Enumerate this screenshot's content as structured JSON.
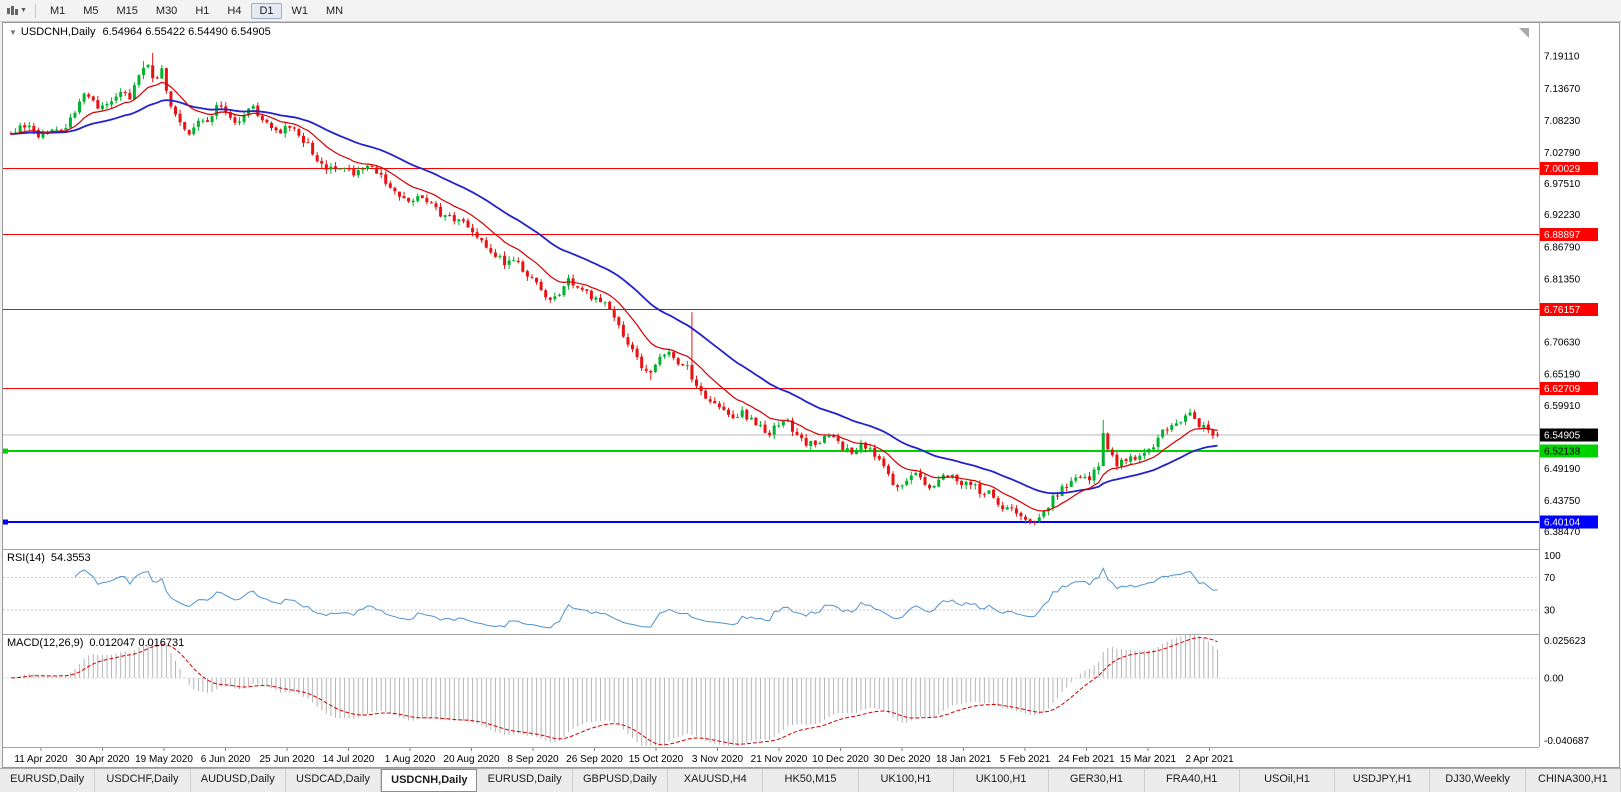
{
  "toolbar": {
    "timeframes": [
      "M1",
      "M5",
      "M15",
      "M30",
      "H1",
      "H4",
      "D1",
      "W1",
      "MN"
    ],
    "active_timeframe": "D1"
  },
  "chart": {
    "legend": {
      "symbol": "USDCNH,Daily",
      "ohlc": "6.54964 6.55422 6.54490 6.54905"
    }
  },
  "chart_data": {
    "type": "candlestick",
    "symbol": "USDCNH",
    "timeframe": "Daily",
    "candle_count": 265,
    "candle_colors": {
      "up": "#00b22d",
      "down": "#e81212"
    },
    "x_labels": [
      "11 Apr 2020",
      "30 Apr 2020",
      "19 May 2020",
      "6 Jun 2020",
      "25 Jun 2020",
      "14 Jul 2020",
      "1 Aug 2020",
      "20 Aug 2020",
      "8 Sep 2020",
      "26 Sep 2020",
      "15 Oct 2020",
      "3 Nov 2020",
      "21 Nov 2020",
      "10 Dec 2020",
      "30 Dec 2020",
      "18 Jan 2021",
      "5 Feb 2021",
      "24 Feb 2021",
      "15 Mar 2021",
      "2 Apr 2021"
    ],
    "y_axis": {
      "min": 6.357,
      "max": 7.2474,
      "tick_labels": [
        "7.19110",
        "7.13670",
        "7.08230",
        "7.02790",
        "6.97510",
        "6.92230",
        "6.86790",
        "6.81350",
        "6.70630",
        "6.65190",
        "6.59910",
        "6.49190",
        "6.43750",
        "6.38470"
      ]
    },
    "close_anchors": [
      [
        0,
        7.062
      ],
      [
        3,
        7.075
      ],
      [
        6,
        7.052
      ],
      [
        9,
        7.068
      ],
      [
        12,
        7.072
      ],
      [
        14,
        7.096
      ],
      [
        16,
        7.128
      ],
      [
        18,
        7.112
      ],
      [
        20,
        7.102
      ],
      [
        22,
        7.118
      ],
      [
        24,
        7.135
      ],
      [
        26,
        7.12
      ],
      [
        28,
        7.158
      ],
      [
        30,
        7.176
      ],
      [
        31,
        7.148
      ],
      [
        33,
        7.168
      ],
      [
        35,
        7.105
      ],
      [
        37,
        7.08
      ],
      [
        39,
        7.062
      ],
      [
        41,
        7.082
      ],
      [
        43,
        7.076
      ],
      [
        45,
        7.112
      ],
      [
        47,
        7.094
      ],
      [
        49,
        7.076
      ],
      [
        51,
        7.092
      ],
      [
        53,
        7.103
      ],
      [
        55,
        7.082
      ],
      [
        57,
        7.072
      ],
      [
        59,
        7.066
      ],
      [
        61,
        7.074
      ],
      [
        63,
        7.058
      ],
      [
        65,
        7.042
      ],
      [
        67,
        7.018
      ],
      [
        69,
        7.002
      ],
      [
        71,
        6.996
      ],
      [
        73,
        7.001
      ],
      [
        75,
        6.99
      ],
      [
        77,
        7.004
      ],
      [
        79,
        7.008
      ],
      [
        81,
        6.988
      ],
      [
        83,
        6.972
      ],
      [
        85,
        6.954
      ],
      [
        87,
        6.944
      ],
      [
        89,
        6.956
      ],
      [
        91,
        6.944
      ],
      [
        93,
        6.93
      ],
      [
        95,
        6.916
      ],
      [
        98,
        6.917
      ],
      [
        100,
        6.9
      ],
      [
        102,
        6.884
      ],
      [
        104,
        6.868
      ],
      [
        106,
        6.854
      ],
      [
        108,
        6.84
      ],
      [
        110,
        6.846
      ],
      [
        112,
        6.828
      ],
      [
        114,
        6.814
      ],
      [
        116,
        6.798
      ],
      [
        118,
        6.774
      ],
      [
        120,
        6.782
      ],
      [
        122,
        6.816
      ],
      [
        124,
        6.8
      ],
      [
        126,
        6.79
      ],
      [
        128,
        6.776
      ],
      [
        130,
        6.768
      ],
      [
        132,
        6.744
      ],
      [
        134,
        6.718
      ],
      [
        136,
        6.694
      ],
      [
        138,
        6.664
      ],
      [
        140,
        6.654
      ],
      [
        142,
        6.676
      ],
      [
        144,
        6.69
      ],
      [
        146,
        6.674
      ],
      [
        148,
        6.664
      ],
      [
        150,
        6.63
      ],
      [
        152,
        6.614
      ],
      [
        154,
        6.6
      ],
      [
        156,
        6.586
      ],
      [
        158,
        6.574
      ],
      [
        160,
        6.586
      ],
      [
        162,
        6.576
      ],
      [
        164,
        6.56
      ],
      [
        166,
        6.554
      ],
      [
        168,
        6.566
      ],
      [
        170,
        6.571
      ],
      [
        172,
        6.545
      ],
      [
        174,
        6.536
      ],
      [
        176,
        6.53
      ],
      [
        178,
        6.541
      ],
      [
        180,
        6.546
      ],
      [
        182,
        6.526
      ],
      [
        184,
        6.519
      ],
      [
        186,
        6.531
      ],
      [
        188,
        6.524
      ],
      [
        190,
        6.504
      ],
      [
        192,
        6.478
      ],
      [
        194,
        6.46
      ],
      [
        196,
        6.471
      ],
      [
        198,
        6.481
      ],
      [
        200,
        6.469
      ],
      [
        202,
        6.459
      ],
      [
        204,
        6.476
      ],
      [
        206,
        6.481
      ],
      [
        208,
        6.469
      ],
      [
        210,
        6.464
      ],
      [
        212,
        6.454
      ],
      [
        214,
        6.449
      ],
      [
        216,
        6.431
      ],
      [
        218,
        6.424
      ],
      [
        220,
        6.419
      ],
      [
        222,
        6.409
      ],
      [
        224,
        6.404
      ],
      [
        226,
        6.421
      ],
      [
        228,
        6.441
      ],
      [
        230,
        6.456
      ],
      [
        232,
        6.471
      ],
      [
        234,
        6.481
      ],
      [
        236,
        6.469
      ],
      [
        238,
        6.499
      ],
      [
        239,
        6.556
      ],
      [
        240,
        6.519
      ],
      [
        242,
        6.501
      ],
      [
        244,
        6.506
      ],
      [
        246,
        6.511
      ],
      [
        248,
        6.521
      ],
      [
        250,
        6.531
      ],
      [
        252,
        6.556
      ],
      [
        254,
        6.566
      ],
      [
        256,
        6.576
      ],
      [
        258,
        6.581
      ],
      [
        260,
        6.566
      ],
      [
        262,
        6.556
      ],
      [
        264,
        6.549
      ]
    ],
    "spikes": [
      {
        "i": 29,
        "high": 7.183
      },
      {
        "i": 31,
        "high": 7.1965
      },
      {
        "i": 33,
        "high": 7.172
      },
      {
        "i": 149,
        "high": 6.757
      },
      {
        "i": 239,
        "high": 6.5745
      },
      {
        "i": 140,
        "low": 6.6415
      },
      {
        "i": 194,
        "low": 6.4535
      },
      {
        "i": 222,
        "low": 6.3985
      },
      {
        "i": 224,
        "low": 6.4005
      }
    ],
    "last_candle": [
      6.54964,
      6.55422,
      6.5449,
      6.54905
    ],
    "hlines": [
      {
        "price": 7.00029,
        "label": "7.00029",
        "color": "#ff0000",
        "text_color": "#ffffff",
        "width": 1,
        "handle": false
      },
      {
        "price": 6.88897,
        "label": "6.88897",
        "color": "#ff0000",
        "text_color": "#ffffff",
        "width": 1,
        "handle": false
      },
      {
        "price": 6.76157,
        "label": "6.76157",
        "color": "#ff0000",
        "text_color": "#ffffff",
        "width": 1,
        "handle": false
      },
      {
        "price": 6.62709,
        "label": "6.62709",
        "color": "#ff0000",
        "text_color": "#ffffff",
        "width": 1,
        "handle": false
      },
      {
        "price": 6.52138,
        "label": "6.52138",
        "color": "#00d200",
        "text_color": "#000000",
        "width": 2,
        "handle": true
      },
      {
        "price": 6.40104,
        "label": "6.40104",
        "color": "#0000ff",
        "text_color": "#ffffff",
        "width": 2,
        "handle": true
      }
    ],
    "current_price": {
      "price": 6.54905,
      "label": "6.54905",
      "line_color": "#b8b8b8",
      "badge_color": "#000000",
      "text_color": "#ffffff"
    },
    "ma": [
      {
        "period": 12,
        "color": "#d40000",
        "width": 1.2
      },
      {
        "period": 34,
        "color": "#2222cc",
        "width": 1.8
      }
    ],
    "rsi": {
      "title": "RSI(14)",
      "value": "54.3553",
      "period": 14,
      "color": "#4f93d1",
      "vmin": 2,
      "vmax": 104,
      "levels": [
        {
          "v": 100,
          "label": "100",
          "line": false
        },
        {
          "v": 70,
          "label": "70",
          "line": true
        },
        {
          "v": 30,
          "label": "30",
          "line": true
        }
      ]
    },
    "macd": {
      "title": "MACD(12,26,9)",
      "value": "0.012047 0.016731",
      "fast": 12,
      "slow": 26,
      "signal": 9,
      "hist_color": "#b4b4b4",
      "signal_color": "#d40000",
      "vmin": -0.040687,
      "vmax": 0.025623,
      "labels": [
        {
          "v": 0.025623,
          "label": "0.025623"
        },
        {
          "v": 0,
          "label": "0.00"
        },
        {
          "v": -0.040687,
          "label": "-0.040687"
        }
      ]
    }
  },
  "tabs": {
    "items": [
      "EURUSD,Daily",
      "USDCHF,Daily",
      "AUDUSD,Daily",
      "USDCAD,Daily",
      "USDCNH,Daily",
      "EURUSD,Daily",
      "GBPUSD,Daily",
      "XAUUSD,H4",
      "HK50,M15",
      "UK100,H1",
      "UK100,H1",
      "GER30,H1",
      "FRA40,H1",
      "USOil,H1",
      "USDJPY,H1",
      "DJ30,Weekly",
      "CHINA300,H1"
    ],
    "active_index": 4
  }
}
